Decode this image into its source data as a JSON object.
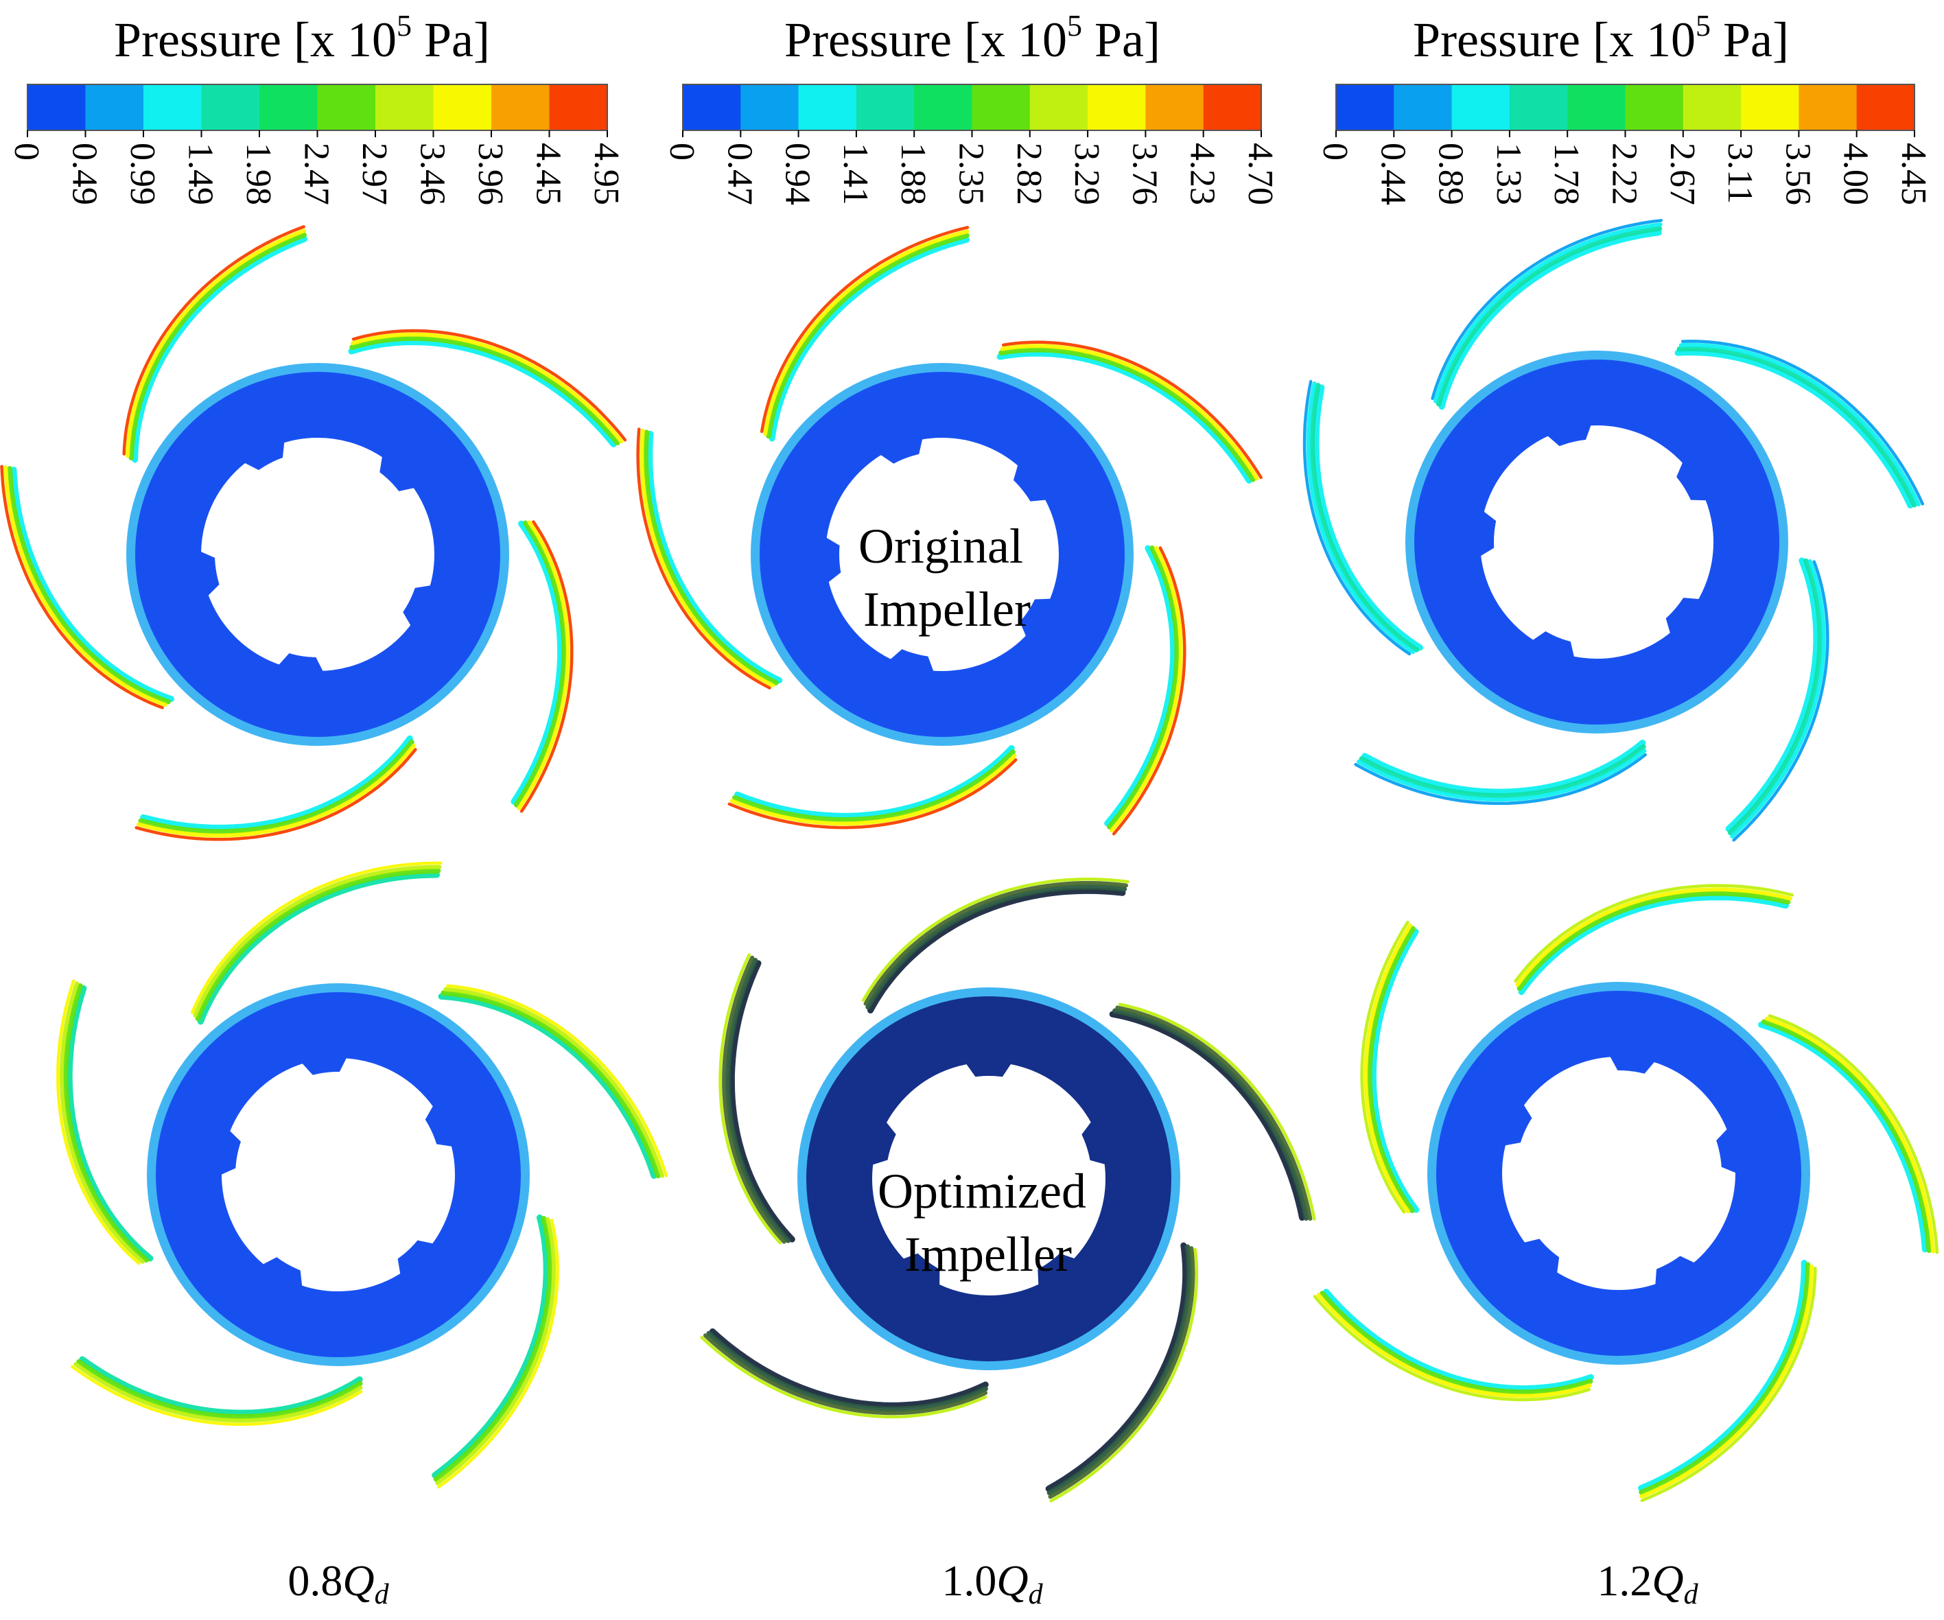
{
  "colorbars": [
    {
      "title_prefix": "Pressure [x 10",
      "title_exp": "5",
      "title_suffix": " Pa]",
      "ticks": [
        "0",
        "0.49",
        "0.99",
        "1.49",
        "1.98",
        "2.47",
        "2.97",
        "3.46",
        "3.96",
        "4.45",
        "4.95"
      ]
    },
    {
      "title_prefix": "Pressure [x 10",
      "title_exp": "5",
      "title_suffix": " Pa]",
      "ticks": [
        "0",
        "0.47",
        "0.94",
        "1.41",
        "1.88",
        "2.35",
        "2.82",
        "3.29",
        "3.76",
        "4.23",
        "4.70"
      ]
    },
    {
      "title_prefix": "Pressure [x 10",
      "title_exp": "5",
      "title_suffix": " Pa]",
      "ticks": [
        "0",
        "0.44",
        "0.89",
        "1.33",
        "1.78",
        "2.22",
        "2.67",
        "3.11",
        "3.56",
        "4.00",
        "4.45"
      ]
    }
  ],
  "colormap": [
    "#0a4cf0",
    "#0aa0f0",
    "#10f0f0",
    "#10e0a8",
    "#10e060",
    "#60e010",
    "#c0f010",
    "#f8f800",
    "#f8a000",
    "#f84000"
  ],
  "colors": {
    "impeller_body": "#1850f0",
    "impeller_light": "#20a8f0",
    "shadow_body": "#14308a"
  },
  "row_labels": {
    "original": [
      "Original",
      "Impeller"
    ],
    "optimized": [
      "Optimized",
      "Impeller"
    ]
  },
  "columns": [
    {
      "prefix": "0.8",
      "q": "Q",
      "sub": "d"
    },
    {
      "prefix": "1.0",
      "q": "Q",
      "sub": "d"
    },
    {
      "prefix": "1.2",
      "q": "Q",
      "sub": "d"
    }
  ]
}
